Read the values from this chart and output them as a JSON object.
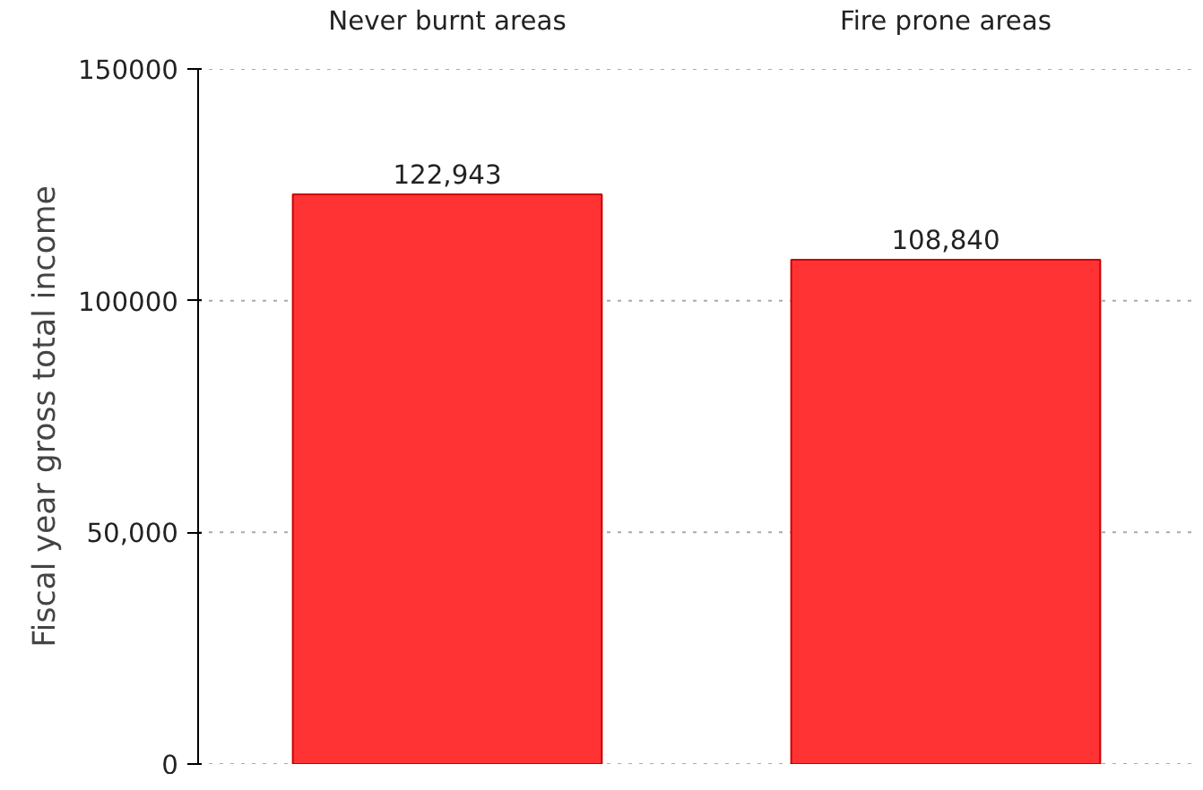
{
  "chart_data": {
    "type": "bar",
    "ylabel": "Fiscal year gross total income",
    "categories": [
      "Never burnt areas",
      "Fire prone areas"
    ],
    "values": [
      122943,
      108840
    ],
    "value_labels": [
      "122,943",
      "108,840"
    ],
    "color": "#ff3333",
    "ylim": [
      0,
      150000
    ],
    "yticks": [
      {
        "value": 0,
        "label": "0"
      },
      {
        "value": 50000,
        "label": "50,000"
      },
      {
        "value": 100000,
        "label": "100000"
      },
      {
        "value": 150000,
        "label": "150000"
      }
    ],
    "grid": "y"
  }
}
